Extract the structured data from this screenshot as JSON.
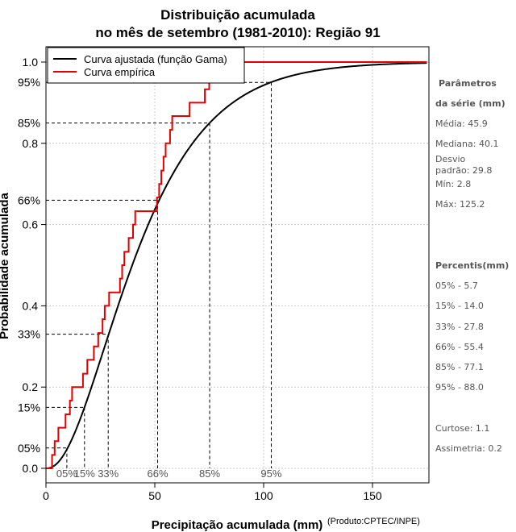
{
  "chart_data": {
    "type": "line",
    "title": "Distribuição acumulada",
    "subtitle": "no mês de setembro (1981-2010): Região 91",
    "xlabel": "Precipitação acumulada (mm)",
    "ylabel": "Probabilidade acumulada",
    "credit": "(Produto:CPTEC/INPE)",
    "xlim": [
      0,
      175
    ],
    "ylim": [
      0,
      1
    ],
    "x_ticks": [
      0,
      50,
      100,
      150
    ],
    "y_ticks": [
      0.0,
      0.2,
      0.4,
      0.6,
      0.8,
      1.0
    ],
    "y_tick_labels": [
      "0.0",
      "0.2",
      "0.4",
      "0.6",
      "0.8",
      "1.0"
    ],
    "legend": {
      "position": "top-left",
      "entries": [
        {
          "label": "Curva ajustada (função Gama)",
          "color": "#000000"
        },
        {
          "label": "Curva empírica",
          "color": "#e00000"
        }
      ]
    },
    "percentile_marks": [
      {
        "label": "05%",
        "p": 0.05,
        "x": 9.6
      },
      {
        "label": "15%",
        "p": 0.15,
        "x": 17.7
      },
      {
        "label": "33%",
        "p": 0.33,
        "x": 28.6
      },
      {
        "label": "66%",
        "p": 0.66,
        "x": 51.3
      },
      {
        "label": "85%",
        "p": 0.85,
        "x": 75.2
      },
      {
        "label": "95%",
        "p": 0.95,
        "x": 103.5
      }
    ],
    "series": [
      {
        "name": "Curva ajustada (função Gama)",
        "kind": "gamma_cdf",
        "mean": 45.9,
        "sd": 29.8,
        "color": "#000000"
      },
      {
        "name": "Curva empírica",
        "kind": "step",
        "color": "#e00000",
        "x": [
          2.8,
          4,
          5.7,
          9,
          11,
          12,
          17,
          19,
          22,
          24,
          26,
          27,
          29,
          34,
          35,
          36,
          38,
          40,
          41,
          51,
          52,
          53,
          54,
          55,
          57,
          58,
          66,
          73,
          75,
          77,
          79,
          84,
          92,
          125.2,
          175
        ],
        "y": [
          0.033,
          0.067,
          0.1,
          0.133,
          0.167,
          0.2,
          0.233,
          0.267,
          0.3,
          0.333,
          0.367,
          0.4,
          0.433,
          0.467,
          0.5,
          0.533,
          0.567,
          0.6,
          0.633,
          0.667,
          0.7,
          0.733,
          0.767,
          0.8,
          0.833,
          0.867,
          0.9,
          0.933,
          0.967,
          1.0,
          1.0,
          1.0,
          1.0,
          1.0,
          1.0
        ]
      }
    ]
  },
  "side_panel": {
    "params_head_1": "Parâmetros",
    "params_head_2": "da série (mm)",
    "media": "Média: 45.9",
    "mediana": "Mediana: 40.1",
    "desvio_1": "Desvio",
    "desvio_2": "padrão: 29.8",
    "min": "Mín: 2.8",
    "max": "Máx: 125.2",
    "percentis_head": "Percentis(mm)",
    "p05": "05% - 5.7",
    "p15": "15% - 14.0",
    "p33": "33% - 27.8",
    "p66": "66% - 55.4",
    "p85": "85% - 77.1",
    "p95": "95% - 88.0",
    "curtose": "Curtose: 1.1",
    "assimetria": "Assimetria: 0.2"
  }
}
